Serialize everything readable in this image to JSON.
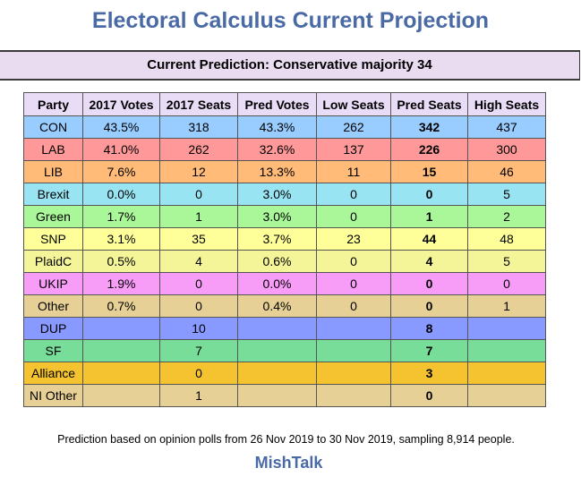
{
  "title": "Electoral Calculus Current Projection",
  "prediction": "Current Prediction: Conservative majority 34",
  "table": {
    "headers": [
      "Party",
      "2017 Votes",
      "2017 Seats",
      "Pred Votes",
      "Low Seats",
      "Pred Seats",
      "High Seats"
    ],
    "rows": [
      {
        "color": "#99ccff",
        "cells": [
          "CON",
          "43.5%",
          "318",
          "43.3%",
          "262",
          "342",
          "437"
        ]
      },
      {
        "color": "#ff9999",
        "cells": [
          "LAB",
          "41.0%",
          "262",
          "32.6%",
          "137",
          "226",
          "300"
        ]
      },
      {
        "color": "#ffbb77",
        "cells": [
          "LIB",
          "7.6%",
          "12",
          "13.3%",
          "11",
          "15",
          "46"
        ]
      },
      {
        "color": "#99e4f2",
        "cells": [
          "Brexit",
          "0.0%",
          "0",
          "3.0%",
          "0",
          "0",
          "5"
        ]
      },
      {
        "color": "#aaf799",
        "cells": [
          "Green",
          "1.7%",
          "1",
          "3.0%",
          "0",
          "1",
          "2"
        ]
      },
      {
        "color": "#ffff99",
        "cells": [
          "SNP",
          "3.1%",
          "35",
          "3.7%",
          "23",
          "44",
          "48"
        ]
      },
      {
        "color": "#f4f499",
        "cells": [
          "PlaidC",
          "0.5%",
          "4",
          "0.6%",
          "0",
          "4",
          "5"
        ]
      },
      {
        "color": "#f79cf7",
        "cells": [
          "UKIP",
          "1.9%",
          "0",
          "0.0%",
          "0",
          "0",
          "0"
        ]
      },
      {
        "color": "#e6d096",
        "cells": [
          "Other",
          "0.7%",
          "0",
          "0.4%",
          "0",
          "0",
          "1"
        ]
      },
      {
        "color": "#8899ff",
        "cells": [
          "DUP",
          "",
          "10",
          "",
          "",
          "8",
          ""
        ]
      },
      {
        "color": "#77dd99",
        "cells": [
          "SF",
          "",
          "7",
          "",
          "",
          "7",
          ""
        ]
      },
      {
        "color": "#f5c330",
        "cells": [
          "Alliance",
          "",
          "0",
          "",
          "",
          "3",
          ""
        ]
      },
      {
        "color": "#e6d096",
        "cells": [
          "NI Other",
          "",
          "1",
          "",
          "",
          "0",
          ""
        ]
      }
    ]
  },
  "footnote": "Prediction based on opinion polls from 26 Nov 2019 to 30 Nov 2019, sampling 8,914 people.",
  "brand": "MishTalk"
}
